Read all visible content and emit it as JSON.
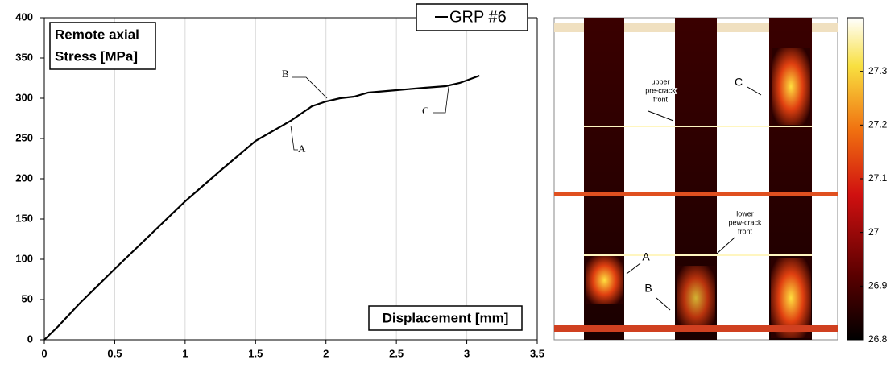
{
  "chart_data": [
    {
      "type": "line",
      "ylabel": [
        "Remote axial",
        "Stress [MPa]"
      ],
      "xlabel": "Displacement [mm]",
      "x": [
        0,
        0.1,
        0.25,
        0.5,
        0.75,
        1.0,
        1.25,
        1.5,
        1.75,
        1.9,
        2.0,
        2.1,
        2.2,
        2.3,
        2.5,
        2.7,
        2.85,
        2.95,
        3.09
      ],
      "series": [
        {
          "name": "GRP #6",
          "color": "#000000",
          "values": [
            0,
            17,
            45,
            88,
            130,
            172,
            210,
            247,
            272,
            290,
            296,
            300,
            302,
            307,
            310,
            313,
            315,
            319,
            328
          ]
        }
      ],
      "xlim": [
        0,
        3.5
      ],
      "xticks": [
        0,
        0.5,
        1,
        1.5,
        2,
        2.5,
        3,
        3.5
      ],
      "ylim": [
        0,
        400
      ],
      "yticks": [
        0,
        50,
        100,
        150,
        200,
        250,
        300,
        350,
        400
      ],
      "grid": true,
      "annotations": [
        "A",
        "B",
        "C"
      ]
    },
    {
      "type": "heatmap",
      "colorbar_lim": [
        26.8,
        27.4
      ],
      "colorbar_ticks": [
        26.8,
        26.9,
        27,
        27.1,
        27.2,
        27.3
      ],
      "annotations": [
        [
          "upper",
          "pre-crack",
          "front"
        ],
        [
          "lower",
          "pew-crack",
          "front"
        ],
        "A",
        "B",
        "C"
      ]
    }
  ]
}
